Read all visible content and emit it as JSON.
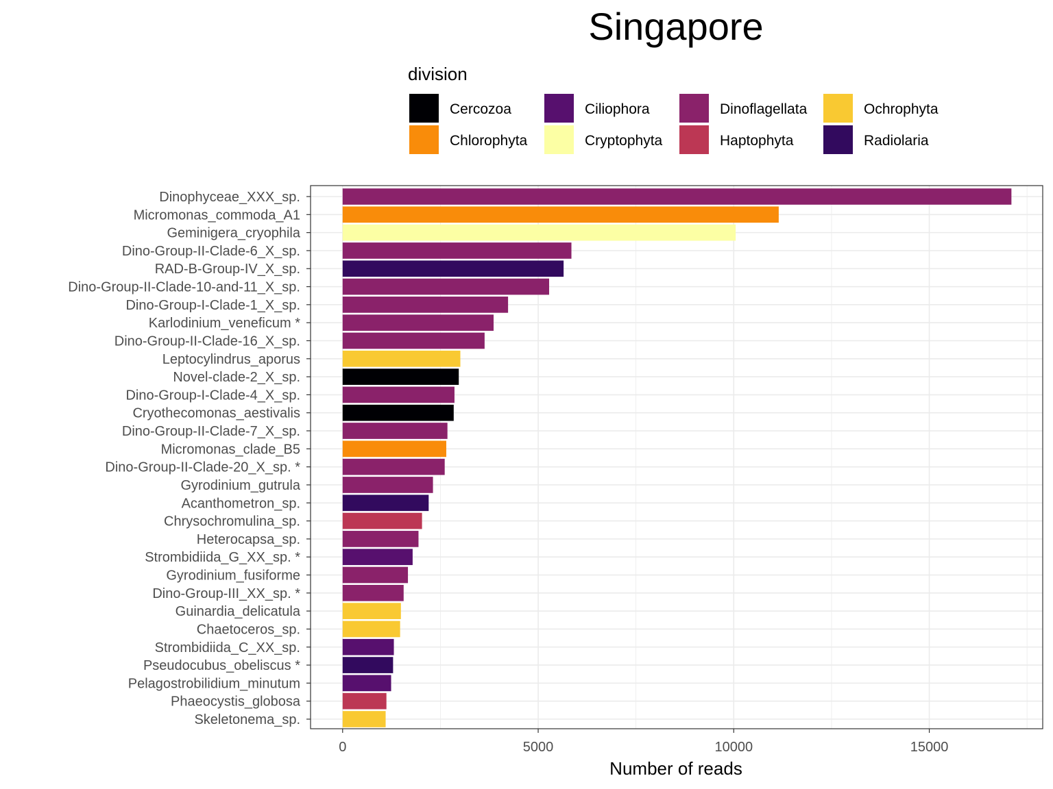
{
  "chart_data": {
    "type": "bar",
    "orientation": "horizontal",
    "title": "Singapore",
    "xlabel": "Number of reads",
    "ylabel": "",
    "xlim": [
      -820,
      17900
    ],
    "xticks": [
      0,
      5000,
      10000,
      15000
    ],
    "grid": true,
    "legend": {
      "title": "division",
      "placement": "top",
      "entries": [
        {
          "name": "Cercozoa",
          "color": "#000004"
        },
        {
          "name": "Chlorophyta",
          "color": "#F98C0A"
        },
        {
          "name": "Ciliophora",
          "color": "#57106E"
        },
        {
          "name": "Cryptophyta",
          "color": "#FCFFA4"
        },
        {
          "name": "Dinoflagellata",
          "color": "#8A226A"
        },
        {
          "name": "Haptophyta",
          "color": "#BC3754"
        },
        {
          "name": "Ochrophyta",
          "color": "#F9C932"
        },
        {
          "name": "Radiolaria",
          "color": "#320A5E"
        }
      ]
    },
    "bars": [
      {
        "label": "Dinophyceae_XXX_sp.",
        "value": 17100,
        "division": "Dinoflagellata"
      },
      {
        "label": "Micromonas_commoda_A1",
        "value": 11150,
        "division": "Chlorophyta"
      },
      {
        "label": "Geminigera_cryophila",
        "value": 10050,
        "division": "Cryptophyta"
      },
      {
        "label": "Dino-Group-II-Clade-6_X_sp.",
        "value": 5850,
        "division": "Dinoflagellata"
      },
      {
        "label": "RAD-B-Group-IV_X_sp.",
        "value": 5650,
        "division": "Radiolaria"
      },
      {
        "label": "Dino-Group-II-Clade-10-and-11_X_sp.",
        "value": 5280,
        "division": "Dinoflagellata"
      },
      {
        "label": "Dino-Group-I-Clade-1_X_sp.",
        "value": 4230,
        "division": "Dinoflagellata"
      },
      {
        "label": "Karlodinium_veneficum *",
        "value": 3860,
        "division": "Dinoflagellata"
      },
      {
        "label": "Dino-Group-II-Clade-16_X_sp.",
        "value": 3630,
        "division": "Dinoflagellata"
      },
      {
        "label": "Leptocylindrus_aporus",
        "value": 3010,
        "division": "Ochrophyta"
      },
      {
        "label": "Novel-clade-2_X_sp.",
        "value": 2970,
        "division": "Cercozoa"
      },
      {
        "label": "Dino-Group-I-Clade-4_X_sp.",
        "value": 2860,
        "division": "Dinoflagellata"
      },
      {
        "label": "Cryothecomonas_aestivalis",
        "value": 2840,
        "division": "Cercozoa"
      },
      {
        "label": "Dino-Group-II-Clade-7_X_sp.",
        "value": 2680,
        "division": "Dinoflagellata"
      },
      {
        "label": "Micromonas_clade_B5",
        "value": 2650,
        "division": "Chlorophyta"
      },
      {
        "label": "Dino-Group-II-Clade-20_X_sp. *",
        "value": 2610,
        "division": "Dinoflagellata"
      },
      {
        "label": "Gyrodinium_gutrula",
        "value": 2310,
        "division": "Dinoflagellata"
      },
      {
        "label": "Acanthometron_sp.",
        "value": 2200,
        "division": "Radiolaria"
      },
      {
        "label": "Chrysochromulina_sp.",
        "value": 2030,
        "division": "Haptophyta"
      },
      {
        "label": "Heterocapsa_sp.",
        "value": 1940,
        "division": "Dinoflagellata"
      },
      {
        "label": "Strombidiida_G_XX_sp. *",
        "value": 1790,
        "division": "Ciliophora"
      },
      {
        "label": "Gyrodinium_fusiforme",
        "value": 1670,
        "division": "Dinoflagellata"
      },
      {
        "label": "Dino-Group-III_XX_sp. *",
        "value": 1560,
        "division": "Dinoflagellata"
      },
      {
        "label": "Guinardia_delicatula",
        "value": 1490,
        "division": "Ochrophyta"
      },
      {
        "label": "Chaetoceros_sp.",
        "value": 1470,
        "division": "Ochrophyta"
      },
      {
        "label": "Strombidiida_C_XX_sp.",
        "value": 1310,
        "division": "Ciliophora"
      },
      {
        "label": "Pseudocubus_obeliscus *",
        "value": 1290,
        "division": "Radiolaria"
      },
      {
        "label": "Pelagostrobilidium_minutum",
        "value": 1240,
        "division": "Ciliophora"
      },
      {
        "label": "Phaeocystis_globosa",
        "value": 1120,
        "division": "Haptophyta"
      },
      {
        "label": "Skeletonema_sp.",
        "value": 1100,
        "division": "Ochrophyta"
      }
    ]
  }
}
